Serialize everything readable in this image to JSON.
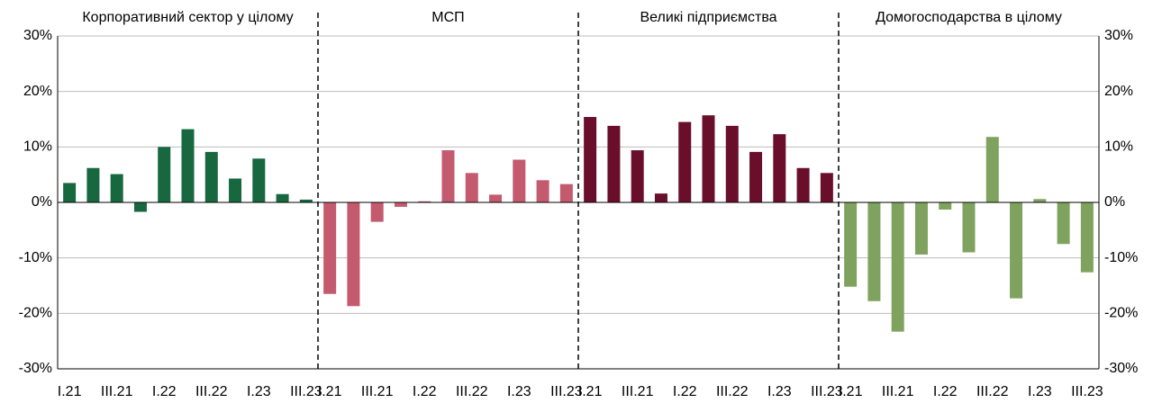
{
  "chart_data": {
    "type": "bar",
    "categories": [
      "I.21",
      null,
      "III.21",
      null,
      "I.22",
      null,
      "III.22",
      null,
      "I.23",
      null,
      "III.23"
    ],
    "panels": [
      {
        "title": "Корпоративний сектор у цілому",
        "color": "#17673f",
        "values": [
          3.5,
          6.2,
          5.1,
          -1.7,
          10,
          13.2,
          9.1,
          4.3,
          7.9,
          1.5,
          0.5
        ]
      },
      {
        "title": "МСП",
        "color": "#c45a6e",
        "values": [
          -16.5,
          -18.7,
          -3.5,
          -0.8,
          0.2,
          9.4,
          5.3,
          1.4,
          7.7,
          4.0,
          3.3
        ]
      },
      {
        "title": "Великі підприємства",
        "color": "#6a0f2b",
        "values": [
          15.4,
          13.8,
          9.4,
          1.6,
          14.5,
          15.7,
          13.8,
          9.1,
          12.3,
          6.2,
          5.3
        ]
      },
      {
        "title": "Домогосподарства в цілому",
        "color": "#7fa35f",
        "values": [
          -15.2,
          -17.8,
          -23.3,
          -9.4,
          -1.3,
          -9.0,
          11.8,
          -17.3,
          0.6,
          -7.5,
          -12.6
        ]
      }
    ],
    "ylim": [
      -30,
      30
    ],
    "yticks": [
      {
        "value": -30,
        "label": "-30%"
      },
      {
        "value": -20,
        "label": "-20%"
      },
      {
        "value": -10,
        "label": "-10%"
      },
      {
        "value": 0,
        "label": "0%"
      },
      {
        "value": 10,
        "label": "10%"
      },
      {
        "value": 20,
        "label": "20%"
      },
      {
        "value": 30,
        "label": "30%"
      }
    ],
    "grid": true
  }
}
